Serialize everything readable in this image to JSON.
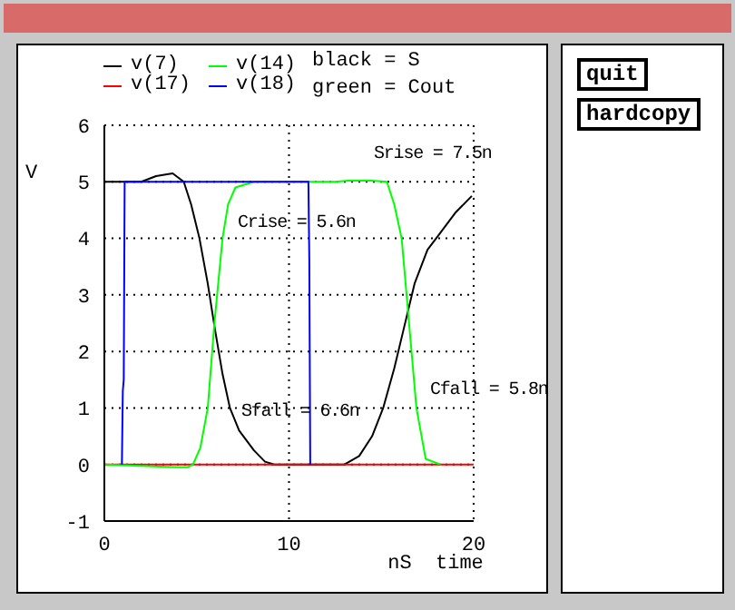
{
  "chart_data": {
    "type": "line",
    "xlabel": "nS  time",
    "ylabel": "V",
    "annotations": [
      "Srise = 7.5n",
      "Crise = 5.6n",
      "Sfall = 6.6n",
      "Cfall = 5.8n",
      "black = S",
      "green = Cout",
      "quit",
      "hardcopy"
    ],
    "series": [
      {
        "name": "v(7)",
        "color": "#000000",
        "x": [
          0,
          2.0,
          2.8,
          3.7,
          4.3,
          4.7,
          5.15,
          5.6,
          5.96,
          6.4,
          6.8,
          7.3,
          8.1,
          8.7,
          9.2,
          13.0,
          13.8,
          14.5,
          15.1,
          15.7,
          16.25,
          16.8,
          17.5,
          18.2,
          19.0,
          19.9
        ],
        "values": [
          5,
          5,
          5.1,
          5.15,
          5.0,
          4.6,
          4.0,
          3.2,
          2.45,
          1.6,
          1.0,
          0.6,
          0.25,
          0.05,
          0,
          0,
          0.15,
          0.5,
          1.0,
          1.7,
          2.45,
          3.2,
          3.8,
          4.1,
          4.45,
          4.75
        ]
      },
      {
        "name": "v(17)",
        "color": "#ff0000",
        "x": [
          0,
          20
        ],
        "values": [
          0,
          0
        ]
      },
      {
        "name": "v(14)",
        "color": "#00ff00",
        "x": [
          0,
          4.0,
          4.5,
          4.8,
          5.2,
          5.6,
          5.96,
          6.4,
          6.7,
          7.1,
          8.1,
          12.5,
          13.2,
          14.5,
          15.3,
          15.7,
          16.1,
          16.5,
          16.9,
          17.4,
          18.2
        ],
        "values": [
          0,
          -0.05,
          -0.05,
          0,
          0.3,
          1.0,
          2.5,
          4.0,
          4.6,
          4.9,
          5,
          5,
          5.02,
          5.02,
          5,
          4.6,
          4.0,
          2.5,
          1.0,
          0.1,
          0
        ]
      },
      {
        "name": "v(18)",
        "color": "#0000ff",
        "x": [
          0.95,
          1.0,
          1.05,
          1.1,
          11.05,
          11.1,
          11.15
        ],
        "values": [
          0,
          1.3,
          1.5,
          5,
          5,
          3.6,
          0
        ]
      }
    ],
    "xlim": [
      0,
      20
    ],
    "xticks": [
      0,
      10,
      20
    ],
    "ylim": [
      -1,
      6
    ],
    "yticks": [
      -1,
      0,
      1,
      2,
      3,
      4,
      5,
      6
    ],
    "grid": true,
    "legend": "top left",
    "marker": "none",
    "line_style": "solid"
  }
}
